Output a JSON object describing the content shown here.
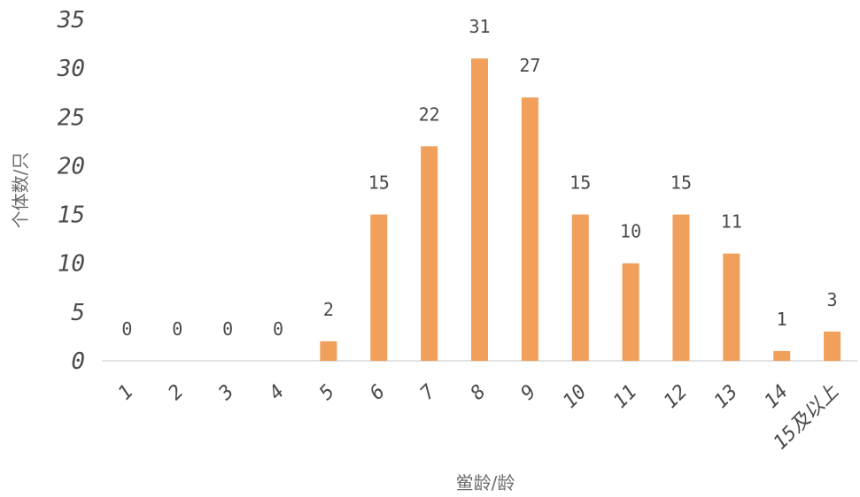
{
  "chart_data": {
    "type": "bar",
    "categories": [
      "1",
      "2",
      "3",
      "4",
      "5",
      "6",
      "7",
      "8",
      "9",
      "10",
      "11",
      "12",
      "13",
      "14",
      "15及以上"
    ],
    "values": [
      0,
      0,
      0,
      0,
      2,
      15,
      22,
      31,
      27,
      15,
      10,
      15,
      11,
      1,
      3
    ],
    "data_labels": [
      "0",
      "0",
      "0",
      "0",
      "2",
      "15",
      "22",
      "31",
      "27",
      "15",
      "10",
      "15",
      "11",
      "1",
      "3"
    ],
    "yticks": [
      "0",
      "5",
      "10",
      "15",
      "20",
      "25",
      "30",
      "35"
    ],
    "ylim": [
      0,
      35
    ],
    "xlabel": "鲎龄/龄",
    "ylabel": "个体数/只",
    "bar_color": "#f0a05a",
    "axis_color": "#d9d9d9",
    "grid": false,
    "legend": "none"
  }
}
